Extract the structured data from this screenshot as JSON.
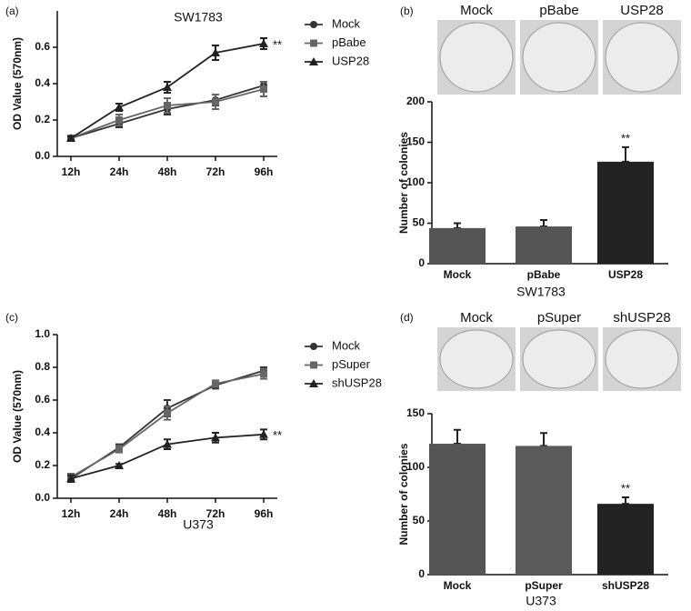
{
  "chart_data": [
    {
      "type": "line",
      "panel_label": "(a)",
      "title": "SW1783",
      "ylabel": "OD Value (570nm)",
      "categories": [
        "12h",
        "24h",
        "48h",
        "72h",
        "96h"
      ],
      "ylim": [
        0,
        0.8
      ],
      "yticks": [
        {
          "value": 0,
          "label": "0.0"
        },
        0.2,
        0.4,
        0.6
      ],
      "series": [
        {
          "name": "Mock",
          "color": "#333333",
          "marker": "circle",
          "values": [
            0.1,
            0.18,
            0.26,
            0.31,
            0.39
          ],
          "errors": [
            0.01,
            0.02,
            0.03,
            0.03,
            0.02
          ]
        },
        {
          "name": "pBabe",
          "color": "#666666",
          "marker": "square",
          "values": [
            0.1,
            0.2,
            0.28,
            0.3,
            0.37
          ],
          "errors": [
            0.01,
            0.03,
            0.04,
            0.04,
            0.04
          ]
        },
        {
          "name": "USP28",
          "color": "#222222",
          "marker": "triangle",
          "values": [
            0.1,
            0.27,
            0.38,
            0.57,
            0.62
          ],
          "errors": [
            0.01,
            0.02,
            0.03,
            0.04,
            0.03
          ]
        }
      ],
      "annotation": "**",
      "legend": "right"
    },
    {
      "type": "bar",
      "panel_label": "(b)",
      "ylabel": "Number of colonies",
      "xlabel": "SW1783",
      "categories": [
        "Mock",
        "pBabe",
        "USP28"
      ],
      "values": [
        44,
        46,
        126
      ],
      "errors": [
        6,
        8,
        18
      ],
      "colors": [
        "#555555",
        "#555555",
        "#222222"
      ],
      "ylim": [
        0,
        200
      ],
      "yticks": [
        0,
        50,
        100,
        150,
        200
      ],
      "annotation": "**"
    },
    {
      "type": "line",
      "panel_label": "(c)",
      "xlabel": "U373",
      "ylabel": "OD Value (570nm)",
      "categories": [
        "12h",
        "24h",
        "48h",
        "72h",
        "96h"
      ],
      "ylim": [
        0,
        1.0
      ],
      "yticks": [
        {
          "value": 0,
          "label": "0.0"
        },
        0.2,
        0.4,
        0.6,
        0.8,
        {
          "value": 1.0,
          "label": "1.0"
        }
      ],
      "series": [
        {
          "name": "Mock",
          "color": "#333333",
          "marker": "circle",
          "values": [
            0.12,
            0.31,
            0.55,
            0.69,
            0.78
          ],
          "errors": [
            0.02,
            0.02,
            0.05,
            0.02,
            0.02
          ]
        },
        {
          "name": "pSuper",
          "color": "#666666",
          "marker": "square",
          "values": [
            0.13,
            0.3,
            0.52,
            0.7,
            0.76
          ],
          "errors": [
            0.02,
            0.02,
            0.04,
            0.02,
            0.03
          ]
        },
        {
          "name": "shUSP28",
          "color": "#222222",
          "marker": "triangle",
          "values": [
            0.12,
            0.2,
            0.33,
            0.37,
            0.39
          ],
          "errors": [
            0.02,
            0.01,
            0.03,
            0.03,
            0.03
          ]
        }
      ],
      "annotation": "**",
      "legend": "right"
    },
    {
      "type": "bar",
      "panel_label": "(d)",
      "ylabel": "Number of colonies",
      "xlabel": "U373",
      "categories": [
        "Mock",
        "pSuper",
        "shUSP28"
      ],
      "values": [
        122,
        120,
        66
      ],
      "errors": [
        13,
        12,
        6
      ],
      "colors": [
        "#555555",
        "#5a5a5a",
        "#222222"
      ],
      "ylim": [
        0,
        150
      ],
      "yticks": [
        0,
        50,
        100,
        150
      ],
      "annotation": "**"
    }
  ]
}
